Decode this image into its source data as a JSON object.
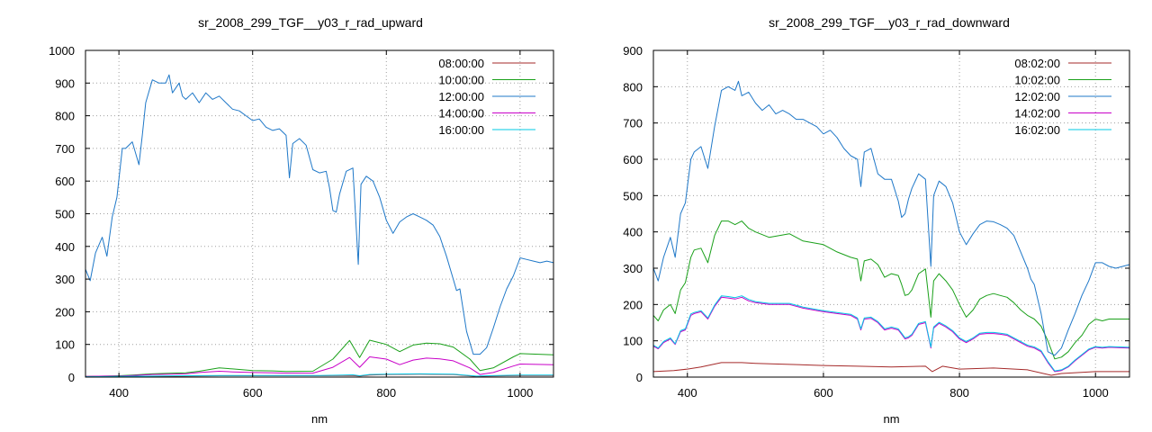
{
  "chart_data": [
    {
      "type": "line",
      "title": "sr_2008_299_TGF__y03_r_rad_upward",
      "xlabel": "nm",
      "ylabel": "",
      "xlim": [
        350,
        1050
      ],
      "ylim": [
        0,
        1000
      ],
      "xticks": [
        400,
        600,
        800,
        1000
      ],
      "yticks": [
        0,
        100,
        200,
        300,
        400,
        500,
        600,
        700,
        800,
        900,
        1000
      ],
      "grid": true,
      "legend_position": "top-right",
      "series": [
        {
          "name": "08:00:00",
          "color": "#a52a2a",
          "x": [
            350,
            400,
            450,
            500,
            550,
            600,
            650,
            700,
            750,
            760,
            775,
            800,
            850,
            900,
            935,
            950,
            1000,
            1050
          ],
          "y": [
            1,
            2,
            2,
            3,
            4,
            4,
            4,
            4,
            5,
            3,
            6,
            8,
            9,
            8,
            2,
            3,
            5,
            5
          ]
        },
        {
          "name": "10:00:00",
          "color": "#1aa01a",
          "x": [
            350,
            380,
            400,
            420,
            450,
            480,
            500,
            520,
            550,
            570,
            600,
            630,
            650,
            690,
            720,
            745,
            760,
            775,
            800,
            820,
            840,
            860,
            880,
            900,
            925,
            940,
            960,
            990,
            1000,
            1050
          ],
          "y": [
            2,
            3,
            4,
            6,
            10,
            12,
            13,
            18,
            28,
            25,
            20,
            19,
            17,
            18,
            55,
            112,
            60,
            113,
            100,
            78,
            98,
            104,
            102,
            92,
            55,
            20,
            28,
            62,
            72,
            68
          ]
        },
        {
          "name": "12:00:00",
          "color": "#1f78c8",
          "x": [
            350,
            357,
            365,
            375,
            382,
            390,
            397,
            405,
            410,
            420,
            430,
            435,
            440,
            450,
            460,
            470,
            475,
            480,
            490,
            495,
            500,
            510,
            520,
            530,
            540,
            550,
            560,
            570,
            580,
            590,
            600,
            610,
            620,
            630,
            640,
            650,
            655,
            660,
            670,
            680,
            690,
            700,
            710,
            715,
            720,
            725,
            730,
            740,
            750,
            758,
            762,
            770,
            780,
            790,
            800,
            810,
            820,
            830,
            840,
            850,
            860,
            870,
            880,
            890,
            900,
            905,
            910,
            920,
            930,
            940,
            950,
            960,
            970,
            980,
            990,
            1000,
            1010,
            1020,
            1030,
            1040,
            1050
          ],
          "y": [
            330,
            295,
            380,
            428,
            370,
            490,
            550,
            700,
            700,
            720,
            650,
            740,
            840,
            910,
            900,
            900,
            925,
            870,
            900,
            860,
            850,
            870,
            840,
            870,
            850,
            860,
            840,
            820,
            815,
            800,
            785,
            790,
            765,
            755,
            760,
            740,
            610,
            715,
            730,
            710,
            635,
            625,
            630,
            580,
            510,
            505,
            560,
            630,
            640,
            345,
            590,
            615,
            600,
            550,
            480,
            440,
            475,
            490,
            500,
            490,
            480,
            465,
            430,
            370,
            300,
            265,
            270,
            140,
            70,
            70,
            90,
            150,
            215,
            270,
            310,
            365,
            360,
            355,
            350,
            355,
            350
          ]
        },
        {
          "name": "14:00:00",
          "color": "#c800c8",
          "x": [
            350,
            380,
            400,
            420,
            450,
            480,
            500,
            520,
            550,
            570,
            600,
            630,
            650,
            690,
            720,
            745,
            760,
            775,
            800,
            820,
            840,
            860,
            880,
            900,
            925,
            940,
            960,
            990,
            1000,
            1050
          ],
          "y": [
            2,
            3,
            3,
            5,
            8,
            9,
            10,
            14,
            18,
            16,
            14,
            13,
            12,
            12,
            30,
            60,
            30,
            62,
            55,
            38,
            52,
            58,
            56,
            50,
            28,
            8,
            14,
            34,
            40,
            38
          ]
        },
        {
          "name": "16:00:00",
          "color": "#00c8e6",
          "x": [
            350,
            400,
            450,
            500,
            550,
            600,
            650,
            700,
            750,
            760,
            775,
            800,
            850,
            900,
            935,
            950,
            1000,
            1050
          ],
          "y": [
            1,
            2,
            3,
            4,
            5,
            5,
            5,
            5,
            7,
            4,
            8,
            9,
            10,
            9,
            3,
            4,
            6,
            6
          ]
        }
      ]
    },
    {
      "type": "line",
      "title": "sr_2008_299_TGF__y03_r_rad_downward",
      "xlabel": "nm",
      "ylabel": "",
      "xlim": [
        350,
        1050
      ],
      "ylim": [
        0,
        900
      ],
      "xticks": [
        400,
        600,
        800,
        1000
      ],
      "yticks": [
        0,
        100,
        200,
        300,
        400,
        500,
        600,
        700,
        800,
        900
      ],
      "grid": true,
      "legend_position": "top-right",
      "series": [
        {
          "name": "08:02:00",
          "color": "#a52a2a",
          "x": [
            350,
            380,
            400,
            420,
            450,
            480,
            500,
            550,
            600,
            650,
            700,
            750,
            760,
            775,
            800,
            850,
            900,
            935,
            950,
            1000,
            1050
          ],
          "y": [
            15,
            18,
            22,
            28,
            40,
            40,
            38,
            35,
            32,
            30,
            28,
            30,
            15,
            30,
            22,
            25,
            20,
            5,
            10,
            15,
            15
          ]
        },
        {
          "name": "10:02:00",
          "color": "#1aa01a",
          "x": [
            350,
            357,
            365,
            375,
            382,
            390,
            397,
            405,
            410,
            420,
            430,
            440,
            450,
            460,
            470,
            480,
            490,
            500,
            520,
            550,
            570,
            600,
            620,
            640,
            650,
            655,
            660,
            670,
            680,
            690,
            700,
            710,
            715,
            720,
            725,
            730,
            740,
            750,
            758,
            762,
            770,
            780,
            790,
            800,
            810,
            820,
            830,
            840,
            850,
            860,
            870,
            880,
            890,
            900,
            910,
            920,
            930,
            940,
            950,
            960,
            970,
            980,
            990,
            1000,
            1010,
            1020,
            1050
          ],
          "y": [
            170,
            155,
            185,
            200,
            175,
            240,
            260,
            330,
            350,
            355,
            315,
            390,
            430,
            430,
            420,
            430,
            410,
            400,
            385,
            395,
            375,
            365,
            345,
            330,
            325,
            265,
            320,
            325,
            310,
            275,
            285,
            280,
            255,
            225,
            228,
            240,
            285,
            298,
            165,
            265,
            285,
            265,
            240,
            200,
            165,
            185,
            215,
            225,
            230,
            225,
            220,
            205,
            185,
            170,
            160,
            140,
            100,
            50,
            55,
            70,
            95,
            115,
            145,
            160,
            155,
            160,
            160
          ]
        },
        {
          "name": "12:02:00",
          "color": "#1f78c8",
          "x": [
            350,
            357,
            365,
            375,
            382,
            390,
            397,
            405,
            410,
            420,
            430,
            440,
            450,
            460,
            470,
            475,
            480,
            490,
            500,
            510,
            520,
            530,
            540,
            550,
            560,
            570,
            580,
            590,
            600,
            610,
            620,
            630,
            640,
            650,
            655,
            660,
            670,
            680,
            690,
            700,
            710,
            715,
            720,
            725,
            730,
            740,
            750,
            758,
            762,
            770,
            780,
            790,
            800,
            810,
            820,
            830,
            840,
            850,
            860,
            870,
            880,
            890,
            900,
            905,
            910,
            920,
            930,
            940,
            950,
            960,
            970,
            980,
            990,
            1000,
            1010,
            1020,
            1030,
            1040,
            1050
          ],
          "y": [
            300,
            265,
            330,
            385,
            330,
            450,
            480,
            600,
            620,
            635,
            575,
            690,
            790,
            800,
            790,
            815,
            775,
            785,
            755,
            735,
            750,
            725,
            735,
            725,
            710,
            710,
            700,
            690,
            670,
            680,
            660,
            630,
            610,
            600,
            525,
            620,
            630,
            560,
            545,
            545,
            485,
            440,
            450,
            490,
            520,
            560,
            545,
            305,
            500,
            540,
            525,
            480,
            400,
            365,
            395,
            420,
            430,
            428,
            420,
            410,
            390,
            345,
            300,
            270,
            255,
            175,
            70,
            60,
            80,
            130,
            175,
            225,
            265,
            315,
            315,
            305,
            300,
            305,
            310
          ]
        },
        {
          "name": "14:02:00",
          "color": "#c800c8",
          "x": [
            350,
            357,
            365,
            375,
            382,
            390,
            397,
            405,
            410,
            420,
            430,
            440,
            450,
            460,
            470,
            480,
            490,
            500,
            520,
            550,
            570,
            600,
            620,
            640,
            650,
            655,
            660,
            670,
            680,
            690,
            700,
            710,
            715,
            720,
            725,
            730,
            740,
            750,
            758,
            762,
            770,
            780,
            790,
            800,
            810,
            820,
            830,
            840,
            850,
            860,
            870,
            880,
            890,
            900,
            910,
            920,
            930,
            940,
            950,
            960,
            970,
            980,
            990,
            1000,
            1010,
            1020,
            1050
          ],
          "y": [
            85,
            78,
            95,
            105,
            90,
            125,
            130,
            170,
            175,
            180,
            160,
            195,
            220,
            218,
            215,
            220,
            210,
            205,
            200,
            200,
            190,
            180,
            175,
            170,
            160,
            130,
            160,
            162,
            150,
            130,
            135,
            130,
            118,
            105,
            108,
            115,
            145,
            150,
            80,
            135,
            148,
            138,
            125,
            105,
            95,
            105,
            118,
            120,
            120,
            118,
            115,
            105,
            95,
            85,
            80,
            70,
            40,
            15,
            18,
            28,
            45,
            60,
            75,
            82,
            80,
            82,
            80
          ]
        },
        {
          "name": "16:02:00",
          "color": "#00c8e6",
          "x": [
            350,
            357,
            365,
            375,
            382,
            390,
            397,
            405,
            410,
            420,
            430,
            440,
            450,
            460,
            470,
            480,
            490,
            500,
            520,
            550,
            570,
            600,
            620,
            640,
            650,
            655,
            660,
            670,
            680,
            690,
            700,
            710,
            715,
            720,
            725,
            730,
            740,
            750,
            758,
            762,
            770,
            780,
            790,
            800,
            810,
            820,
            830,
            840,
            850,
            860,
            870,
            880,
            890,
            900,
            910,
            920,
            930,
            940,
            950,
            960,
            970,
            980,
            990,
            1000,
            1010,
            1020,
            1050
          ],
          "y": [
            88,
            80,
            98,
            108,
            92,
            128,
            133,
            174,
            178,
            183,
            163,
            198,
            224,
            222,
            219,
            224,
            214,
            208,
            203,
            203,
            193,
            183,
            178,
            173,
            163,
            133,
            163,
            165,
            153,
            133,
            138,
            133,
            121,
            108,
            111,
            118,
            148,
            153,
            83,
            138,
            151,
            141,
            128,
            108,
            98,
            108,
            121,
            123,
            123,
            121,
            118,
            108,
            98,
            88,
            83,
            73,
            43,
            17,
            20,
            30,
            47,
            62,
            77,
            84,
            82,
            84,
            82
          ]
        }
      ]
    }
  ]
}
